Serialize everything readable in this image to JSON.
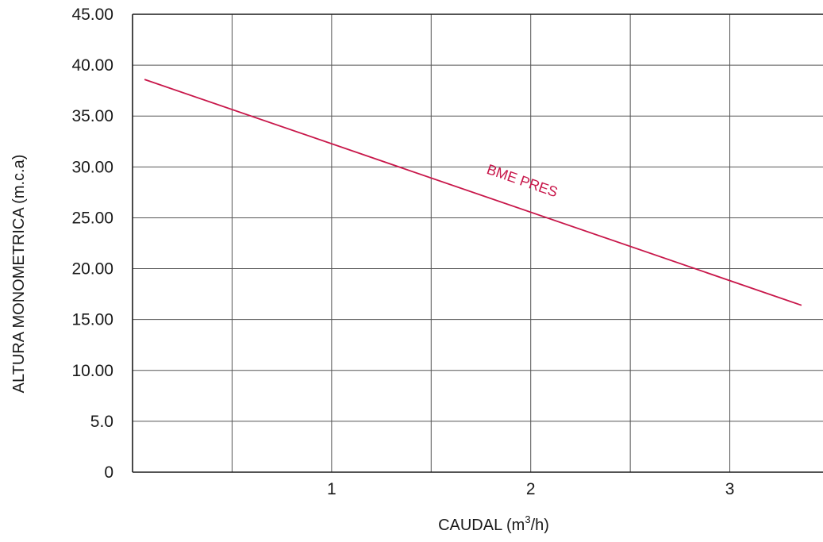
{
  "chart_data": {
    "type": "line",
    "title": "",
    "xlabel": "CAUDAL (m3/h)",
    "xlabel_parts": {
      "main": "CAUDAL (m",
      "superscript": "3",
      "tail": "/h)"
    },
    "ylabel": "ALTURA MONOMETRICA (m.c.a)",
    "xlim": [
      0,
      3.5
    ],
    "ylim": [
      0,
      45
    ],
    "x_grid_step": 0.5,
    "x_ticks": [
      {
        "value": 1,
        "label": "1"
      },
      {
        "value": 2,
        "label": "2"
      },
      {
        "value": 3,
        "label": "3"
      }
    ],
    "y_ticks": [
      {
        "value": 0,
        "label": "0"
      },
      {
        "value": 5,
        "label": "5.0"
      },
      {
        "value": 10,
        "label": "10.00"
      },
      {
        "value": 15,
        "label": "15.00"
      },
      {
        "value": 20,
        "label": "20.00"
      },
      {
        "value": 25,
        "label": "25.00"
      },
      {
        "value": 30,
        "label": "30.00"
      },
      {
        "value": 35,
        "label": "35.00"
      },
      {
        "value": 40,
        "label": "40.00"
      },
      {
        "value": 45,
        "label": "45.00"
      }
    ],
    "grid": true,
    "series": [
      {
        "name": "BME PRES",
        "color": "#c8174a",
        "x": [
          0.06,
          3.36
        ],
        "y": [
          38.6,
          16.4
        ],
        "label_at": {
          "x": 1.95,
          "y": 28.2
        }
      }
    ],
    "colors": {
      "grid": "#555555",
      "axis": "#1a1a1a",
      "text": "#1a1a1a"
    }
  }
}
